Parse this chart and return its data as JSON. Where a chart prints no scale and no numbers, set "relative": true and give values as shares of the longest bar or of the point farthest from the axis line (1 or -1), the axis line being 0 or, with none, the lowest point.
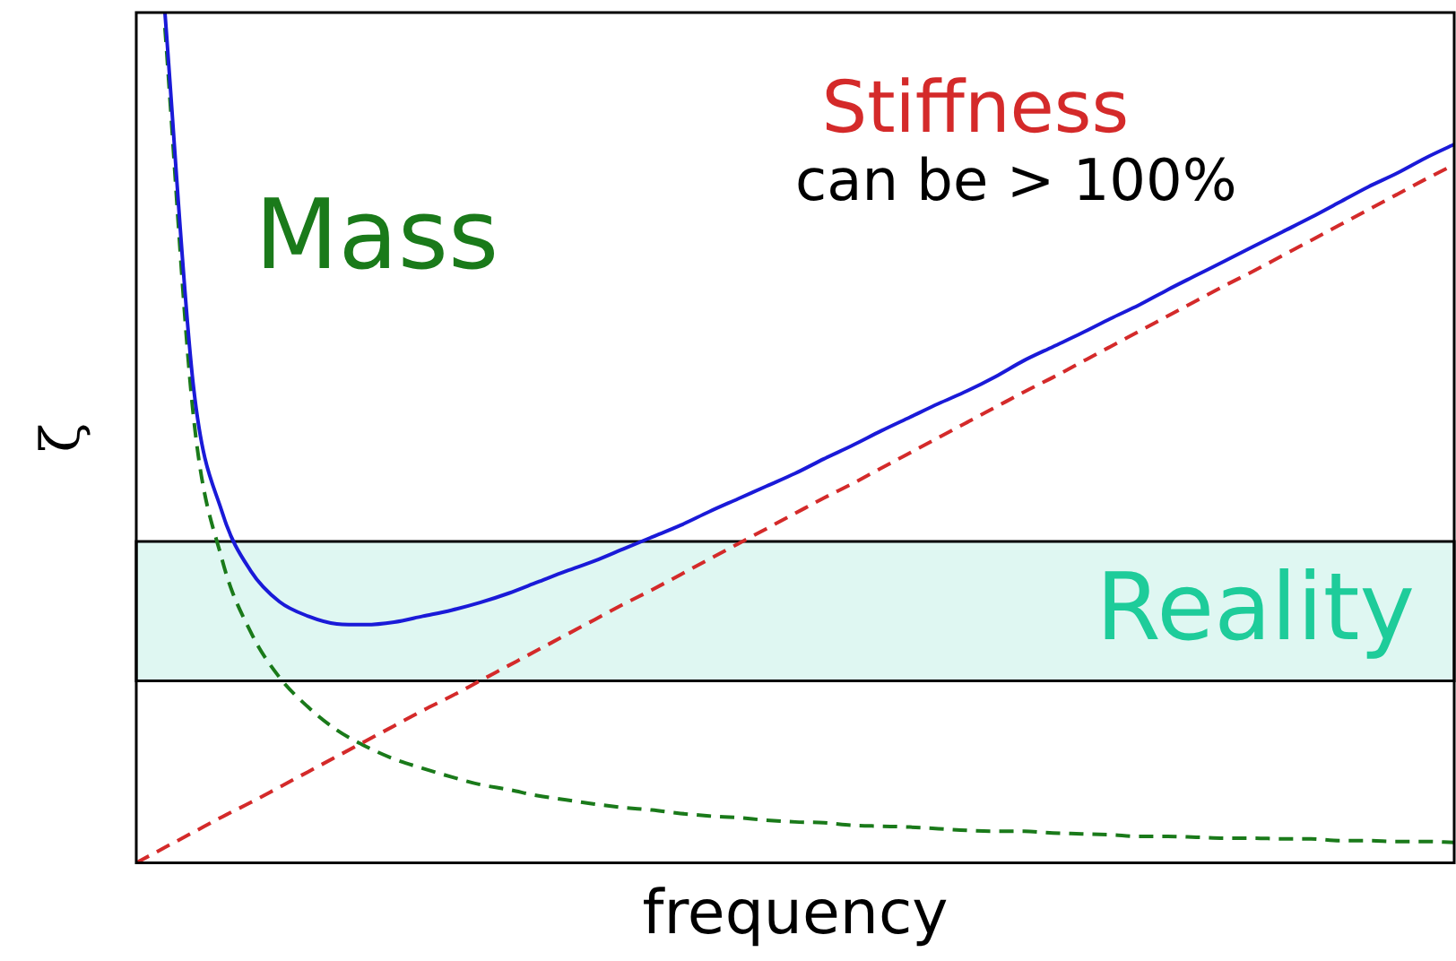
{
  "chart_data": {
    "type": "line",
    "relative": true,
    "xlabel": "frequency",
    "ylabel": "ζ",
    "categories": [
      null,
      null,
      null,
      null,
      null,
      null,
      null,
      null,
      null,
      null,
      null,
      null,
      null,
      null,
      null,
      null,
      null,
      null,
      null,
      null,
      null,
      null,
      null,
      null,
      null,
      null,
      null,
      null,
      null,
      null,
      null,
      null,
      null,
      null,
      null,
      null,
      null,
      null,
      null,
      null,
      null,
      null,
      null,
      null,
      null,
      null,
      null
    ],
    "series": [
      {
        "color": "#1a1ad8",
        "line_style": "solid",
        "values": [
          null,
          1,
          0.559,
          0.412,
          0.343,
          0.307,
          0.29,
          0.281,
          0.28,
          0.283,
          0.29,
          0.297,
          0.306,
          0.317,
          0.33,
          0.343,
          0.355,
          0.369,
          0.383,
          0.397,
          0.413,
          0.428,
          0.443,
          0.458,
          0.475,
          0.491,
          0.508,
          0.524,
          0.54,
          0.555,
          0.572,
          0.591,
          0.607,
          0.623,
          0.64,
          0.656,
          0.674,
          0.691,
          0.708,
          0.725,
          0.742,
          0.759,
          0.777,
          0.795,
          0.811,
          0.829,
          0.845
        ]
      },
      {
        "name": "Stiffness",
        "color": "#d42a2a",
        "line_style": "dashed",
        "values": [
          0,
          0.018,
          0.036,
          0.054,
          0.071,
          0.089,
          0.107,
          0.125,
          0.143,
          0.161,
          0.179,
          0.196,
          0.214,
          0.232,
          0.25,
          0.268,
          0.286,
          0.304,
          0.321,
          0.339,
          0.357,
          0.375,
          0.393,
          0.411,
          0.429,
          0.446,
          0.464,
          0.482,
          0.5,
          0.518,
          0.536,
          0.554,
          0.571,
          0.589,
          0.607,
          0.625,
          0.643,
          0.661,
          0.679,
          0.696,
          0.714,
          0.732,
          0.75,
          0.768,
          0.786,
          0.804,
          0.821
        ]
      },
      {
        "name": "Mass",
        "color": "#1a7a1a",
        "line_style": "dashed",
        "values": [
          null,
          0.982,
          0.524,
          0.356,
          0.271,
          0.218,
          0.183,
          0.156,
          0.137,
          0.122,
          0.111,
          0.101,
          0.092,
          0.086,
          0.079,
          0.074,
          0.069,
          0.065,
          0.062,
          0.058,
          0.055,
          0.053,
          0.05,
          0.048,
          0.047,
          0.044,
          0.043,
          0.042,
          0.04,
          0.038,
          0.037,
          0.037,
          0.035,
          0.034,
          0.033,
          0.031,
          0.031,
          0.03,
          0.029,
          0.029,
          0.028,
          0.028,
          0.026,
          0.026,
          0.025,
          0.025,
          0.024
        ]
      }
    ],
    "bands": [
      {
        "axis": "y",
        "from": 0.214,
        "to": 0.378,
        "label": "Reality",
        "color": "#dff7f2"
      }
    ],
    "annotations": [
      "can be > 100%"
    ],
    "legend": false,
    "grid": false,
    "marker": "none"
  }
}
